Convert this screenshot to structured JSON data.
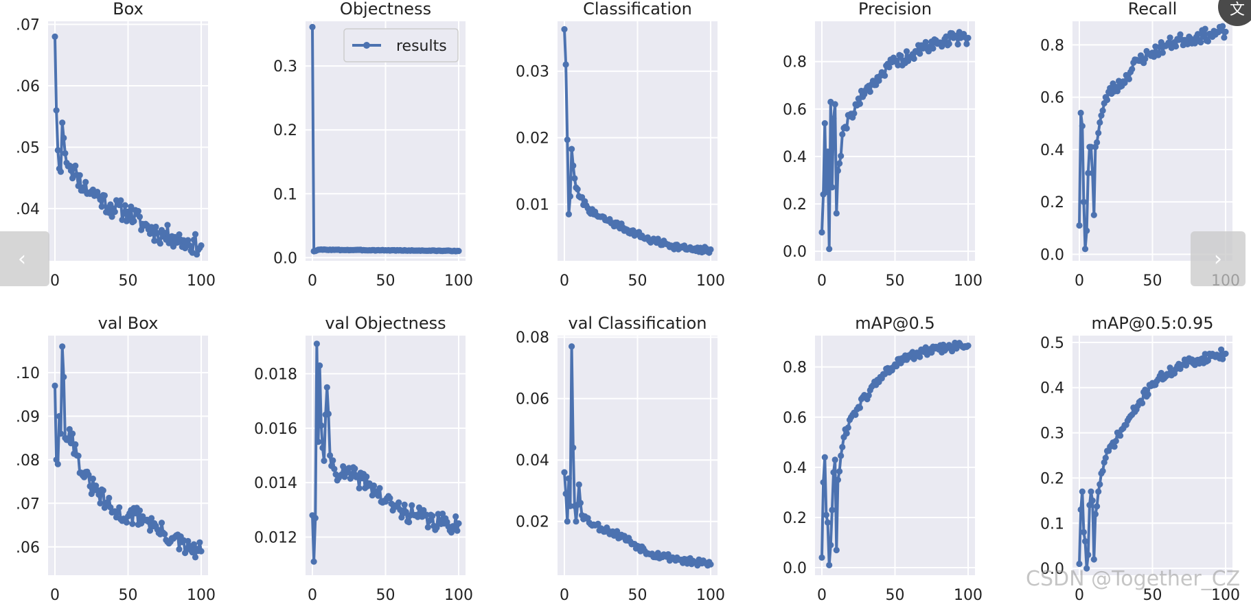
{
  "colors": {
    "line": "#4c72b0",
    "panel": "#eaeaf2",
    "grid": "#ffffff",
    "text": "#222222"
  },
  "navigation": {
    "prev_icon": "chevron-left-icon",
    "prev_glyph": "‹",
    "next_icon": "chevron-right-icon",
    "next_glyph": "›"
  },
  "corner": {
    "icon": "translate-icon",
    "glyph": "文"
  },
  "watermark": "CSDN @Together_CZ",
  "chart_data": [
    {
      "type": "line",
      "title": "Box",
      "xlim": [
        0,
        100
      ],
      "ylim": [
        0.0315,
        0.0705
      ],
      "yticks": [
        0.04,
        0.05,
        0.06,
        0.07
      ],
      "ytick_labels": [
        ".04",
        ".05",
        ".06",
        ".07"
      ],
      "xticks": [
        0,
        50,
        100
      ],
      "xtick_labels": [
        "0",
        "50",
        "100"
      ],
      "anchors": [
        [
          0,
          0.068
        ],
        [
          1,
          0.056
        ],
        [
          2,
          0.0495
        ],
        [
          3,
          0.0465
        ],
        [
          4,
          0.046
        ],
        [
          5,
          0.054
        ],
        [
          6,
          0.0515
        ],
        [
          7,
          0.049
        ],
        [
          10,
          0.047
        ],
        [
          15,
          0.0455
        ],
        [
          20,
          0.0435
        ],
        [
          30,
          0.042
        ],
        [
          40,
          0.04
        ],
        [
          50,
          0.0395
        ],
        [
          60,
          0.0375
        ],
        [
          70,
          0.036
        ],
        [
          80,
          0.0355
        ],
        [
          90,
          0.0345
        ],
        [
          100,
          0.034
        ]
      ],
      "noise": 0.0017,
      "seed": 11
    },
    {
      "type": "line",
      "title": "Objectness",
      "xlim": [
        0,
        100
      ],
      "ylim": [
        -0.005,
        0.37
      ],
      "yticks": [
        0.0,
        0.1,
        0.2,
        0.3
      ],
      "ytick_labels": [
        "0.0",
        "0.1",
        "0.2",
        "0.3"
      ],
      "xticks": [
        0,
        50,
        100
      ],
      "xtick_labels": [
        "0",
        "50",
        "100"
      ],
      "legend": "results",
      "anchors": [
        [
          0,
          0.361
        ],
        [
          1,
          0.01
        ],
        [
          5,
          0.0125
        ],
        [
          20,
          0.012
        ],
        [
          50,
          0.0115
        ],
        [
          100,
          0.0105
        ]
      ],
      "noise": 0.0005,
      "seed": 3
    },
    {
      "type": "line",
      "title": "Classification",
      "xlim": [
        0,
        100
      ],
      "ylim": [
        0.0015,
        0.0375
      ],
      "yticks": [
        0.01,
        0.02,
        0.03
      ],
      "ytick_labels": [
        "0.01",
        "0.02",
        "0.03"
      ],
      "xticks": [
        0,
        50,
        100
      ],
      "xtick_labels": [
        "0",
        "50",
        "100"
      ],
      "anchors": [
        [
          0,
          0.0363
        ],
        [
          1,
          0.031
        ],
        [
          2,
          0.0197
        ],
        [
          3,
          0.0085
        ],
        [
          4,
          0.0112
        ],
        [
          5,
          0.0183
        ],
        [
          6,
          0.0158
        ],
        [
          8,
          0.0125
        ],
        [
          10,
          0.0112
        ],
        [
          15,
          0.0098
        ],
        [
          20,
          0.0085
        ],
        [
          30,
          0.0075
        ],
        [
          40,
          0.0065
        ],
        [
          50,
          0.0055
        ],
        [
          60,
          0.0045
        ],
        [
          70,
          0.004
        ],
        [
          80,
          0.0035
        ],
        [
          90,
          0.003
        ],
        [
          100,
          0.0032
        ]
      ],
      "noise": 0.0005,
      "seed": 7
    },
    {
      "type": "line",
      "title": "Precision",
      "xlim": [
        0,
        100
      ],
      "ylim": [
        -0.04,
        0.97
      ],
      "yticks": [
        0.0,
        0.2,
        0.4,
        0.6,
        0.8
      ],
      "ytick_labels": [
        "0.0",
        "0.2",
        "0.4",
        "0.6",
        "0.8"
      ],
      "xticks": [
        0,
        50,
        100
      ],
      "xtick_labels": [
        "0",
        "50",
        "100"
      ],
      "anchors": [
        [
          0,
          0.08
        ],
        [
          1,
          0.24
        ],
        [
          2,
          0.54
        ],
        [
          3,
          0.25
        ],
        [
          4,
          0.42
        ],
        [
          5,
          0.01
        ],
        [
          6,
          0.63
        ],
        [
          7,
          0.27
        ],
        [
          8,
          0.56
        ],
        [
          9,
          0.62
        ],
        [
          10,
          0.16
        ],
        [
          11,
          0.34
        ],
        [
          15,
          0.52
        ],
        [
          20,
          0.58
        ],
        [
          30,
          0.68
        ],
        [
          40,
          0.74
        ],
        [
          50,
          0.8
        ],
        [
          60,
          0.82
        ],
        [
          70,
          0.86
        ],
        [
          80,
          0.88
        ],
        [
          90,
          0.9
        ],
        [
          100,
          0.9
        ]
      ],
      "noise": 0.028,
      "seed": 19
    },
    {
      "type": "line",
      "title": "Recall",
      "xlim": [
        0,
        100
      ],
      "ylim": [
        -0.025,
        0.89
      ],
      "yticks": [
        0.0,
        0.2,
        0.4,
        0.6,
        0.8
      ],
      "ytick_labels": [
        "0.0",
        "0.2",
        "0.4",
        "0.6",
        "0.8"
      ],
      "xticks": [
        0,
        50,
        100
      ],
      "xtick_labels": [
        "0",
        "50",
        "100"
      ],
      "anchors": [
        [
          0,
          0.11
        ],
        [
          1,
          0.54
        ],
        [
          2,
          0.49
        ],
        [
          3,
          0.2
        ],
        [
          4,
          0.02
        ],
        [
          5,
          0.09
        ],
        [
          6,
          0.31
        ],
        [
          7,
          0.41
        ],
        [
          8,
          0.41
        ],
        [
          9,
          0.31
        ],
        [
          10,
          0.15
        ],
        [
          11,
          0.41
        ],
        [
          15,
          0.53
        ],
        [
          20,
          0.62
        ],
        [
          30,
          0.66
        ],
        [
          40,
          0.74
        ],
        [
          50,
          0.77
        ],
        [
          60,
          0.8
        ],
        [
          70,
          0.82
        ],
        [
          80,
          0.83
        ],
        [
          90,
          0.84
        ],
        [
          100,
          0.85
        ]
      ],
      "noise": 0.025,
      "seed": 23
    },
    {
      "type": "line",
      "title": "val Box",
      "xlim": [
        0,
        100
      ],
      "ylim": [
        0.0535,
        0.1085
      ],
      "yticks": [
        0.06,
        0.07,
        0.08,
        0.09,
        0.1
      ],
      "ytick_labels": [
        ".06",
        ".07",
        ".08",
        ".09",
        ".10"
      ],
      "xticks": [
        0,
        50,
        100
      ],
      "xtick_labels": [
        "0",
        "50",
        "100"
      ],
      "anchors": [
        [
          0,
          0.097
        ],
        [
          1,
          0.08
        ],
        [
          2,
          0.079
        ],
        [
          3,
          0.09
        ],
        [
          4,
          0.086
        ],
        [
          5,
          0.106
        ],
        [
          6,
          0.099
        ],
        [
          7,
          0.085
        ],
        [
          10,
          0.087
        ],
        [
          15,
          0.081
        ],
        [
          20,
          0.076
        ],
        [
          30,
          0.072
        ],
        [
          40,
          0.068
        ],
        [
          50,
          0.067
        ],
        [
          60,
          0.067
        ],
        [
          70,
          0.064
        ],
        [
          80,
          0.062
        ],
        [
          90,
          0.0595
        ],
        [
          100,
          0.059
        ]
      ],
      "noise": 0.0022,
      "seed": 31
    },
    {
      "type": "line",
      "title": "val Objectness",
      "xlim": [
        0,
        100
      ],
      "ylim": [
        0.0106,
        0.0194
      ],
      "yticks": [
        0.012,
        0.014,
        0.016,
        0.018
      ],
      "ytick_labels": [
        "0.012",
        "0.014",
        "0.016",
        "0.018"
      ],
      "xticks": [
        0,
        50,
        100
      ],
      "xtick_labels": [
        "0",
        "50",
        "100"
      ],
      "anchors": [
        [
          0,
          0.0128
        ],
        [
          1,
          0.0111
        ],
        [
          2,
          0.0127
        ],
        [
          3,
          0.0191
        ],
        [
          4,
          0.0155
        ],
        [
          5,
          0.0183
        ],
        [
          6,
          0.0161
        ],
        [
          8,
          0.0148
        ],
        [
          10,
          0.0175
        ],
        [
          12,
          0.015
        ],
        [
          15,
          0.0145
        ],
        [
          20,
          0.0143
        ],
        [
          30,
          0.0142
        ],
        [
          40,
          0.0139
        ],
        [
          50,
          0.0133
        ],
        [
          60,
          0.013
        ],
        [
          70,
          0.0128
        ],
        [
          80,
          0.0126
        ],
        [
          90,
          0.0125
        ],
        [
          100,
          0.0125
        ]
      ],
      "noise": 0.00035,
      "seed": 41
    },
    {
      "type": "line",
      "title": "val Classification",
      "xlim": [
        0,
        100
      ],
      "ylim": [
        0.0025,
        0.0805
      ],
      "yticks": [
        0.02,
        0.04,
        0.06,
        0.08
      ],
      "ytick_labels": [
        "0.02",
        "0.04",
        "0.06",
        "0.08"
      ],
      "xticks": [
        0,
        50,
        100
      ],
      "xtick_labels": [
        "0",
        "50",
        "100"
      ],
      "anchors": [
        [
          0,
          0.036
        ],
        [
          1,
          0.029
        ],
        [
          2,
          0.02
        ],
        [
          3,
          0.034
        ],
        [
          4,
          0.025
        ],
        [
          5,
          0.077
        ],
        [
          6,
          0.044
        ],
        [
          7,
          0.025
        ],
        [
          8,
          0.02
        ],
        [
          10,
          0.032
        ],
        [
          12,
          0.022
        ],
        [
          15,
          0.021
        ],
        [
          20,
          0.019
        ],
        [
          30,
          0.017
        ],
        [
          40,
          0.015
        ],
        [
          50,
          0.012
        ],
        [
          60,
          0.0095
        ],
        [
          70,
          0.0085
        ],
        [
          80,
          0.0075
        ],
        [
          90,
          0.0065
        ],
        [
          100,
          0.006
        ]
      ],
      "noise": 0.0012,
      "seed": 53
    },
    {
      "type": "line",
      "title": "mAP@0.5",
      "xlim": [
        0,
        100
      ],
      "ylim": [
        -0.03,
        0.925
      ],
      "yticks": [
        0.0,
        0.2,
        0.4,
        0.6,
        0.8
      ],
      "ytick_labels": [
        "0.0",
        "0.2",
        "0.4",
        "0.6",
        "0.8"
      ],
      "xticks": [
        0,
        50,
        100
      ],
      "xtick_labels": [
        "0",
        "50",
        "100"
      ],
      "anchors": [
        [
          0,
          0.04
        ],
        [
          1,
          0.34
        ],
        [
          2,
          0.44
        ],
        [
          3,
          0.21
        ],
        [
          4,
          0.18
        ],
        [
          5,
          0.01
        ],
        [
          6,
          0.09
        ],
        [
          7,
          0.23
        ],
        [
          8,
          0.38
        ],
        [
          9,
          0.43
        ],
        [
          10,
          0.07
        ],
        [
          11,
          0.35
        ],
        [
          15,
          0.52
        ],
        [
          20,
          0.6
        ],
        [
          30,
          0.68
        ],
        [
          40,
          0.76
        ],
        [
          50,
          0.81
        ],
        [
          60,
          0.84
        ],
        [
          70,
          0.86
        ],
        [
          80,
          0.87
        ],
        [
          90,
          0.88
        ],
        [
          100,
          0.885
        ]
      ],
      "noise": 0.018,
      "seed": 61
    },
    {
      "type": "line",
      "title": "mAP@0.5:0.95",
      "xlim": [
        0,
        100
      ],
      "ylim": [
        -0.015,
        0.515
      ],
      "yticks": [
        0.0,
        0.1,
        0.2,
        0.3,
        0.4,
        0.5
      ],
      "ytick_labels": [
        "0.0",
        "0.1",
        "0.2",
        "0.3",
        "0.4",
        "0.5"
      ],
      "xticks": [
        0,
        50,
        100
      ],
      "xtick_labels": [
        "0",
        "50",
        "100"
      ],
      "anchors": [
        [
          0,
          0.01
        ],
        [
          1,
          0.13
        ],
        [
          2,
          0.17
        ],
        [
          3,
          0.08
        ],
        [
          4,
          0.06
        ],
        [
          5,
          0.0
        ],
        [
          6,
          0.03
        ],
        [
          7,
          0.14
        ],
        [
          8,
          0.17
        ],
        [
          9,
          0.15
        ],
        [
          10,
          0.02
        ],
        [
          11,
          0.12
        ],
        [
          15,
          0.21
        ],
        [
          20,
          0.26
        ],
        [
          30,
          0.31
        ],
        [
          40,
          0.36
        ],
        [
          50,
          0.41
        ],
        [
          60,
          0.43
        ],
        [
          70,
          0.45
        ],
        [
          80,
          0.46
        ],
        [
          90,
          0.47
        ],
        [
          100,
          0.475
        ]
      ],
      "noise": 0.011,
      "seed": 71
    }
  ]
}
